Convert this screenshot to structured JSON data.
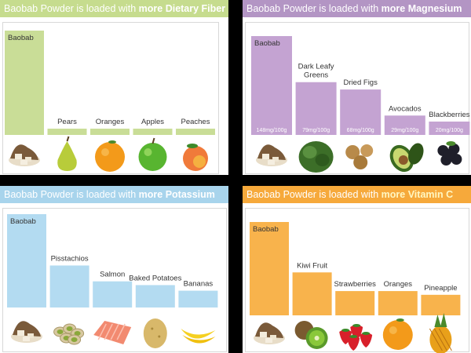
{
  "panels": [
    {
      "id": "fiber",
      "header": {
        "prefix": "Baobab Powder is loaded with",
        "highlight": "more Dietary Fiber"
      },
      "colors": {
        "header": "#c6dc8e",
        "bar": "#c9dd97",
        "highlight": "#ffffff"
      },
      "chart_data": {
        "type": "bar",
        "categories": [
          "Baobab",
          "Pears",
          "Oranges",
          "Apples",
          "Peaches"
        ],
        "values": [
          100,
          6,
          6,
          6,
          6
        ],
        "value_labels": [
          "",
          "",
          "",
          "",
          ""
        ],
        "title": "Baobab Powder is loaded with more Dietary Fiber",
        "ylim": [
          0,
          100
        ],
        "grid": false
      },
      "foods": [
        "baobab-icon",
        "pear-icon",
        "orange-icon",
        "apple-icon",
        "peach-icon"
      ]
    },
    {
      "id": "magnesium",
      "header": {
        "prefix": "Baobab Powder is loaded with",
        "highlight": "more Magnesium"
      },
      "colors": {
        "header": "#b395c4",
        "bar": "#c4a3d2",
        "highlight": "#ffffff"
      },
      "chart_data": {
        "type": "bar",
        "categories": [
          "Baobab",
          "Dark Leafy Greens",
          "Dried Figs",
          "Avocados",
          "Blackberries"
        ],
        "values": [
          148,
          79,
          68,
          29,
          20
        ],
        "value_labels": [
          "148mg/100g",
          "79mg/100g",
          "68mg/100g",
          "29mg/100g",
          "20mg/100g"
        ],
        "title": "Baobab Powder is loaded with more Magnesium",
        "ylim": [
          0,
          148
        ],
        "grid": false
      },
      "foods": [
        "baobab-icon",
        "greens-icon",
        "figs-icon",
        "avocado-icon",
        "blackberry-icon"
      ]
    },
    {
      "id": "potassium",
      "header": {
        "prefix": "Baobab Powder is loaded with",
        "highlight": "more Potassium"
      },
      "colors": {
        "header": "#a8d4ec",
        "bar": "#b3dbf1",
        "highlight": "#ffffff"
      },
      "chart_data": {
        "type": "bar",
        "categories": [
          "Baobab",
          "Pisstachios",
          "Salmon",
          "Baked Potatoes",
          "Bananas"
        ],
        "values": [
          100,
          45,
          28,
          24,
          18
        ],
        "value_labels": [
          "",
          "",
          "",
          "",
          ""
        ],
        "title": "Baobab Powder is loaded with more Potassium",
        "ylim": [
          0,
          100
        ],
        "grid": false
      },
      "foods": [
        "baobab-icon",
        "pistachio-icon",
        "salmon-icon",
        "potato-icon",
        "banana-icon"
      ]
    },
    {
      "id": "vitaminc",
      "header": {
        "prefix": "Baobab Powder is loaded with",
        "highlight": "more Vitamin C"
      },
      "colors": {
        "header": "#f6a93b",
        "bar": "#f8b34c",
        "highlight": "#fff7c2"
      },
      "chart_data": {
        "type": "bar",
        "categories": [
          "Baobab",
          "Kiwi Fruit",
          "Strawberries",
          "Oranges",
          "Pineapple"
        ],
        "values": [
          100,
          46,
          26,
          26,
          22
        ],
        "value_labels": [
          "",
          "",
          "",
          "",
          ""
        ],
        "title": "Baobab Powder is loaded with more Vitamin C",
        "ylim": [
          0,
          100
        ],
        "grid": false
      },
      "foods": [
        "baobab-icon",
        "kiwi-icon",
        "strawberry-icon",
        "orange-icon",
        "pineapple-icon"
      ]
    }
  ]
}
